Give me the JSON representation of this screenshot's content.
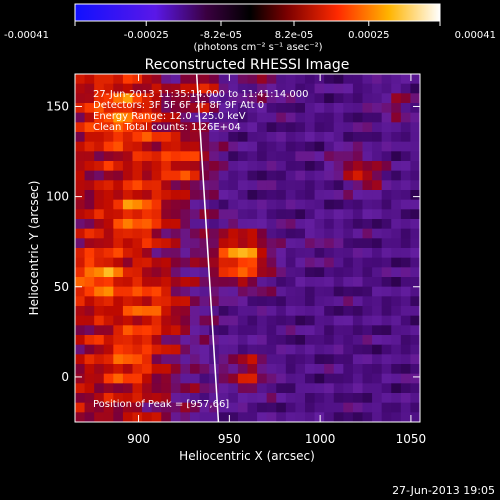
{
  "colorbar": {
    "tick_labels": [
      "-0.00041",
      "-0.00025",
      "-8.2e-05",
      "8.2e-05",
      "0.00025",
      "0.00041"
    ],
    "tick_values": [
      -0.00041,
      -0.00025,
      -8.2e-05,
      8.2e-05,
      0.00025,
      0.00041
    ],
    "range": [
      -0.00041,
      0.00041
    ],
    "units": "(photons cm⁻² s⁻¹ asec⁻²)",
    "colormap": "blue-purple-red-orange-yellow-white"
  },
  "plot_title": "Reconstructed RHESSI Image",
  "info_lines": [
    "27-Jun-2013 11:35:14.000 to 11:41:14.000",
    "Detectors: 3F 5F 6F 7F 8F 9F Att 0",
    "Energy Range: 12.0 - 25.0 keV",
    "Clean    Total counts: 1.26E+04"
  ],
  "peak_text": "Position of Peak = [957,66]",
  "footer_timestamp": "27-Jun-2013 19:05",
  "chart_data": {
    "type": "heatmap",
    "title": "Reconstructed RHESSI Image",
    "xlabel": "Heliocentric X (arcsec)",
    "ylabel": "Heliocentric Y (arcsec)",
    "xlim": [
      865,
      1055
    ],
    "ylim": [
      -25,
      168
    ],
    "x_ticks": [
      900,
      950,
      1000,
      1050
    ],
    "x_tick_labels": [
      "900",
      "950",
      "1000",
      "1050"
    ],
    "y_ticks": [
      0,
      50,
      100,
      150
    ],
    "y_tick_labels": [
      "0",
      "50",
      "100",
      "150"
    ],
    "peak_position": [
      957,
      66
    ],
    "limb_line": [
      [
        932,
        168
      ],
      [
        944,
        -25
      ]
    ],
    "colors": {
      "background": "#000000",
      "text": "#ffffff",
      "limb": "#ffffff"
    }
  }
}
